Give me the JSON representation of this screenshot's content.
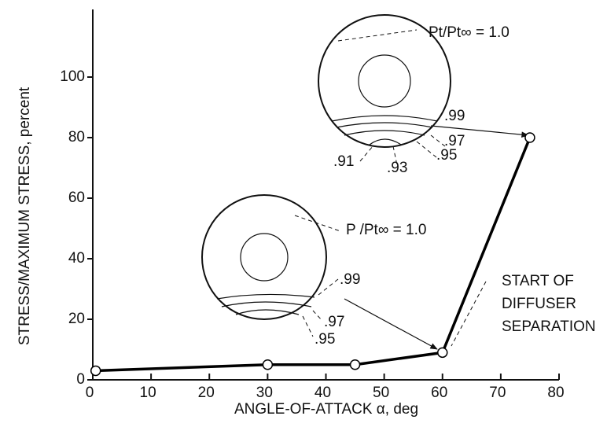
{
  "chart_data": {
    "type": "line",
    "x_label": "ANGLE-OF-ATTACK α, deg",
    "y_label": "STRESS/MAXIMUM STRESS, percent",
    "x": [
      0.5,
      30,
      45,
      60,
      75
    ],
    "series": [
      {
        "color": "#000000",
        "values": [
          3,
          5,
          5,
          9,
          80
        ]
      }
    ],
    "xlim": [
      0,
      80
    ],
    "xticks": [
      0,
      10,
      20,
      30,
      40,
      50,
      60,
      70,
      80
    ],
    "ylim": [
      0,
      120
    ],
    "yticks": [
      0,
      20,
      40,
      60,
      80,
      100
    ],
    "grid": false,
    "upper_inset": {
      "label": "Pt/Pt∞ = 1.0",
      "contours": [
        ".99",
        ".97",
        ".95",
        ".93",
        ".91"
      ]
    },
    "lower_inset": {
      "label": "P /Pt∞ = 1.0",
      "contours": [
        ".99",
        ".97",
        ".95"
      ]
    },
    "annotation": [
      "START OF",
      "DIFFUSER",
      "SEPARATION"
    ]
  }
}
